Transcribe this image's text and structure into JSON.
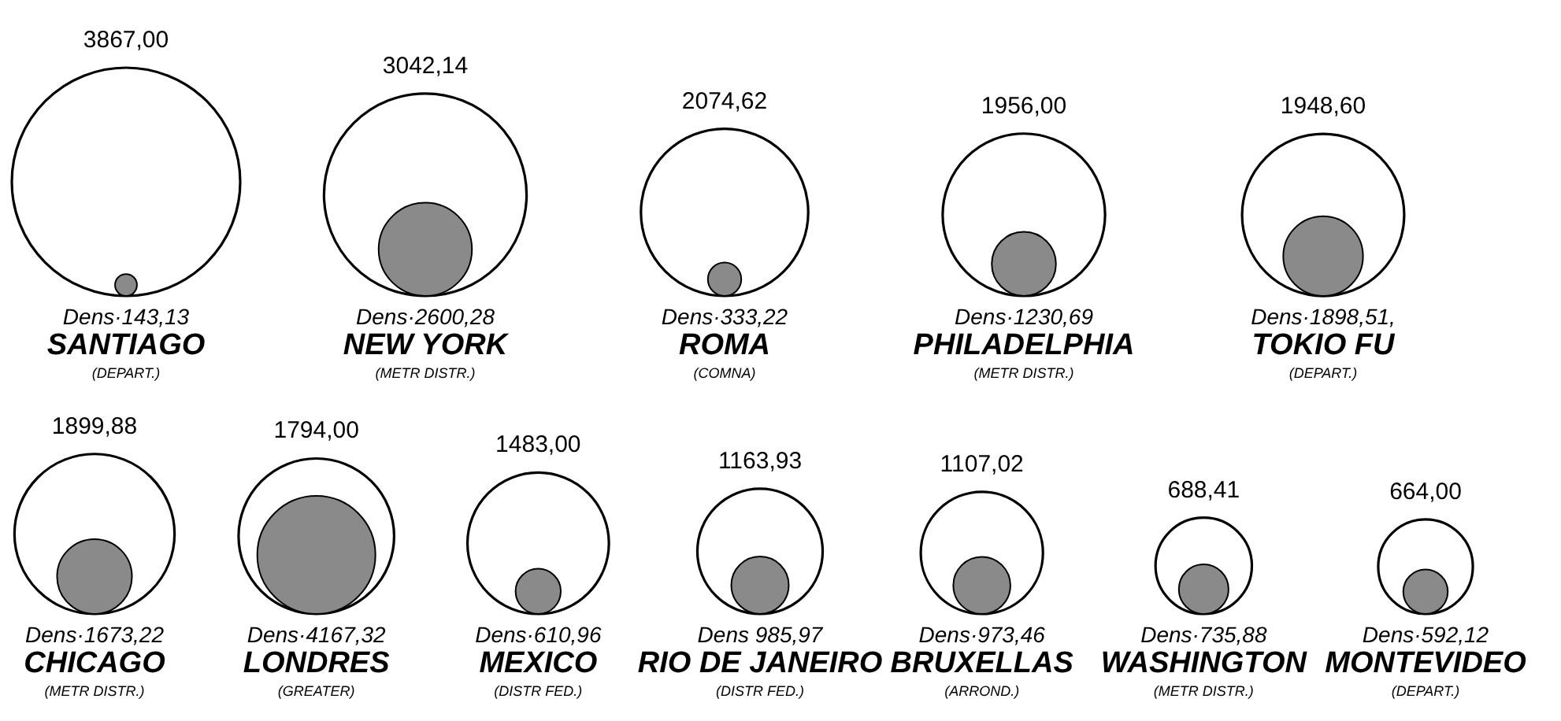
{
  "chart_data": {
    "type": "other",
    "categories": [
      "SANTIAGO",
      "NEW YORK",
      "ROMA",
      "PHILADELPHIA",
      "TOKIO FU",
      "CHICAGO",
      "LONDRES",
      "MEXICO",
      "RIO DE JANEIRO",
      "BRUXELLAS",
      "WASHINGTON",
      "MONTEVIDEO"
    ],
    "series": [
      {
        "color": "#000000",
        "values": [
          3867.0,
          3042.14,
          2074.62,
          1956.0,
          1948.6,
          1899.88,
          1794.0,
          1483.0,
          1163.93,
          1107.02,
          688.41,
          664.0
        ],
        "value_labels": [
          "3867,00",
          "3042,14",
          "2074,62",
          "1956,00",
          "1948,60",
          "1899,88",
          "1794,00",
          "1483,00",
          "1163,93",
          "1107,02",
          "688,41",
          "664,00"
        ]
      },
      {
        "color": "#8a8a8a",
        "values": [
          143.13,
          2600.28,
          333.22,
          1230.69,
          1898.51,
          1673.22,
          4167.32,
          610.96,
          985.97,
          973.46,
          735.88,
          592.12
        ],
        "value_labels": [
          "Dens·143,13",
          "Dens·2600,28",
          "Dens·333,22",
          "Dens·1230,69",
          "Dens·1898,51,",
          "Dens·1673,22",
          "Dens·4167,32",
          "Dens·610,96",
          "Dens 985,97",
          "Dens·973,46",
          "Dens·735,88",
          "Dens·592,12"
        ]
      }
    ],
    "annotations": [
      {
        "text": "(DEPART.)",
        "x": "SANTIAGO"
      },
      {
        "text": "(METR DISTR.)",
        "x": "NEW YORK"
      },
      {
        "text": "(COMNA)",
        "x": "ROMA"
      },
      {
        "text": "(METR DISTR.)",
        "x": "PHILADELPHIA"
      },
      {
        "text": "(DEPART.)",
        "x": "TOKIO FU"
      },
      {
        "text": "(METR DISTR.)",
        "x": "CHICAGO"
      },
      {
        "text": "(GREATER)",
        "x": "LONDRES"
      },
      {
        "text": "(DISTR FED.)",
        "x": "MEXICO"
      },
      {
        "text": "(DISTR FED.)",
        "x": "RIO DE JANEIRO"
      },
      {
        "text": "(ARROND.)",
        "x": "BRUXELLAS"
      },
      {
        "text": "(METR DISTR.)",
        "x": "WASHINGTON"
      },
      {
        "text": "(DEPART.)",
        "x": "MONTEVIDEO"
      }
    ]
  }
}
